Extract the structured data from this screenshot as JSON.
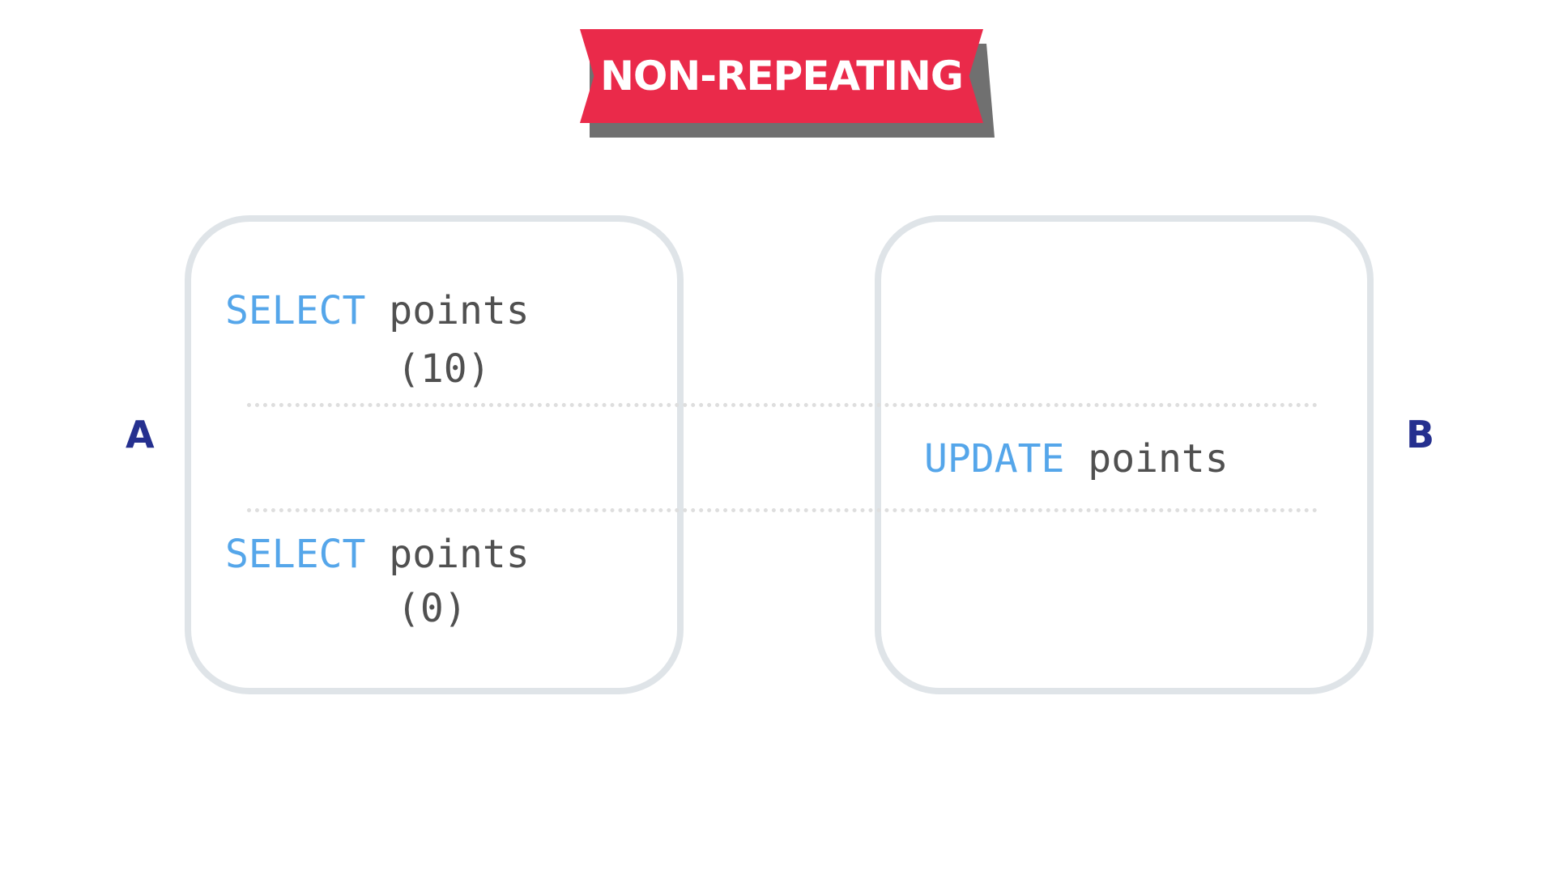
{
  "banner": {
    "title": "NON-REPEATING",
    "color": "#ea2a4a",
    "shadow_color": "#707070"
  },
  "transactions": {
    "a": {
      "label": "A",
      "statements": [
        {
          "keyword": "SELECT",
          "target": "points",
          "result": "(10)"
        },
        {
          "keyword": "SELECT",
          "target": "points",
          "result": "(0)"
        }
      ]
    },
    "b": {
      "label": "B",
      "statements": [
        {
          "keyword": "UPDATE",
          "target": "points"
        }
      ]
    }
  },
  "colors": {
    "keyword": "#55a6ea",
    "identifier": "#505050",
    "label": "#25308f",
    "box_border": "#dfe4e8",
    "separator": "#dedede"
  }
}
